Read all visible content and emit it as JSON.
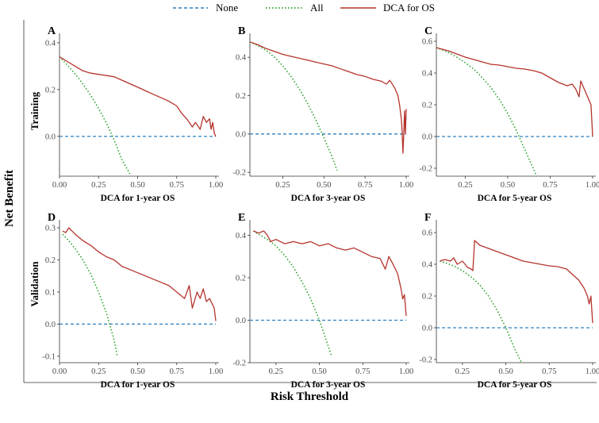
{
  "chart_data": {
    "type": "line",
    "legend": {
      "placement": "top-center",
      "entries": [
        {
          "name": "None",
          "color": "#2e7fbf",
          "style": "dashed"
        },
        {
          "name": "All",
          "color": "#2ca02c",
          "style": "dotted"
        },
        {
          "name": "DCA for OS",
          "color": "#b5332c",
          "style": "solid"
        }
      ]
    },
    "xlabel": "Risk Threshold",
    "ylabel": "Net Benefit",
    "row_labels": [
      "Training",
      "Validation"
    ],
    "panels": [
      {
        "letter": "A",
        "xlabel": "DCA for 1-year OS",
        "row": 0,
        "col": 0,
        "xlim": [
          0.0,
          1.0
        ],
        "ylim": [
          -0.17,
          0.42
        ],
        "xticks": [
          0,
          0.25,
          0.5,
          0.75,
          1.0
        ],
        "xtick_labels": [
          "0.00",
          "0.25",
          "0.50",
          "0.75",
          "1.00"
        ],
        "yticks": [
          0,
          0.2,
          0.4
        ],
        "ytick_labels": [
          "0.0",
          "0.2",
          "0.4"
        ],
        "series": {
          "None": {
            "x": [
              0.0,
              1.0
            ],
            "y": [
              0,
              0
            ]
          },
          "All": {
            "x": [
              0.0,
              0.05,
              0.1,
              0.15,
              0.2,
              0.25,
              0.3,
              0.35,
              0.4,
              0.45
            ],
            "y": [
              0.34,
              0.305,
              0.267,
              0.224,
              0.175,
              0.12,
              0.057,
              -0.015,
              -0.1,
              -0.16
            ]
          },
          "DCA for OS": {
            "x": [
              0.0,
              0.05,
              0.1,
              0.15,
              0.2,
              0.25,
              0.3,
              0.35,
              0.4,
              0.45,
              0.5,
              0.55,
              0.6,
              0.65,
              0.7,
              0.75,
              0.78,
              0.82,
              0.85,
              0.87,
              0.9,
              0.92,
              0.94,
              0.96,
              0.97,
              0.98,
              0.99,
              1.0
            ],
            "y": [
              0.34,
              0.32,
              0.3,
              0.28,
              0.27,
              0.265,
              0.26,
              0.255,
              0.24,
              0.225,
              0.21,
              0.195,
              0.18,
              0.165,
              0.15,
              0.13,
              0.1,
              0.07,
              0.04,
              0.06,
              0.03,
              0.085,
              0.06,
              0.075,
              0.03,
              0.06,
              0.015,
              0.0
            ]
          }
        }
      },
      {
        "letter": "B",
        "xlabel": "DCA for 3-year OS",
        "row": 0,
        "col": 1,
        "xlim": [
          0.05,
          1.0
        ],
        "ylim": [
          -0.22,
          0.5
        ],
        "xticks": [
          0.25,
          0.5,
          0.75,
          1.0
        ],
        "xtick_labels": [
          "0.25",
          "0.50",
          "0.75",
          "1.00"
        ],
        "yticks": [
          -0.2,
          0,
          0.2,
          0.4
        ],
        "ytick_labels": [
          "-0.2",
          "0.0",
          "0.2",
          "0.4"
        ],
        "series": {
          "None": {
            "x": [
              0.05,
              1.0
            ],
            "y": [
              0,
              0
            ]
          },
          "All": {
            "x": [
              0.05,
              0.1,
              0.15,
              0.2,
              0.25,
              0.3,
              0.35,
              0.4,
              0.45,
              0.5,
              0.55,
              0.58
            ],
            "y": [
              0.48,
              0.46,
              0.435,
              0.4,
              0.355,
              0.3,
              0.235,
              0.16,
              0.075,
              -0.02,
              -0.12,
              -0.19
            ]
          },
          "DCA for OS": {
            "x": [
              0.05,
              0.1,
              0.15,
              0.2,
              0.25,
              0.3,
              0.35,
              0.4,
              0.45,
              0.5,
              0.55,
              0.6,
              0.65,
              0.7,
              0.75,
              0.8,
              0.85,
              0.88,
              0.9,
              0.93,
              0.95,
              0.96,
              0.97,
              0.975,
              0.98,
              0.985,
              0.99,
              0.995,
              1.0
            ],
            "y": [
              0.48,
              0.465,
              0.445,
              0.43,
              0.415,
              0.405,
              0.395,
              0.385,
              0.375,
              0.365,
              0.355,
              0.34,
              0.325,
              0.31,
              0.3,
              0.285,
              0.275,
              0.26,
              0.28,
              0.24,
              0.2,
              0.15,
              0.08,
              0.02,
              -0.1,
              0.0,
              0.12,
              0.0,
              0.13
            ]
          }
        }
      },
      {
        "letter": "C",
        "xlabel": "DCA for 5-year OS",
        "row": 0,
        "col": 2,
        "xlim": [
          0.08,
          1.0
        ],
        "ylim": [
          -0.25,
          0.62
        ],
        "xticks": [
          0.25,
          0.5,
          0.75,
          1.0
        ],
        "xtick_labels": [
          "0.25",
          "0.50",
          "0.75",
          "1.00"
        ],
        "yticks": [
          -0.2,
          0,
          0.2,
          0.4,
          0.6
        ],
        "ytick_labels": [
          "-0.2",
          "0.0",
          "0.2",
          "0.4",
          "0.6"
        ],
        "series": {
          "None": {
            "x": [
              0.08,
              1.0
            ],
            "y": [
              0,
              0
            ]
          },
          "All": {
            "x": [
              0.08,
              0.15,
              0.2,
              0.25,
              0.3,
              0.35,
              0.4,
              0.45,
              0.5,
              0.55,
              0.6,
              0.65,
              0.67
            ],
            "y": [
              0.56,
              0.53,
              0.5,
              0.465,
              0.425,
              0.37,
              0.31,
              0.235,
              0.145,
              0.04,
              -0.08,
              -0.2,
              -0.25
            ]
          },
          "DCA for OS": {
            "x": [
              0.08,
              0.15,
              0.2,
              0.25,
              0.3,
              0.35,
              0.4,
              0.45,
              0.5,
              0.55,
              0.6,
              0.65,
              0.7,
              0.75,
              0.8,
              0.85,
              0.88,
              0.9,
              0.92,
              0.93,
              0.95,
              0.97,
              0.99,
              1.0
            ],
            "y": [
              0.56,
              0.54,
              0.52,
              0.5,
              0.485,
              0.47,
              0.455,
              0.45,
              0.44,
              0.43,
              0.425,
              0.415,
              0.4,
              0.37,
              0.34,
              0.32,
              0.33,
              0.3,
              0.25,
              0.35,
              0.3,
              0.25,
              0.2,
              0.0
            ]
          }
        }
      },
      {
        "letter": "D",
        "xlabel": "DCA for 1-year OS",
        "row": 1,
        "col": 0,
        "xlim": [
          0.0,
          1.0
        ],
        "ylim": [
          -0.12,
          0.31
        ],
        "xticks": [
          0,
          0.25,
          0.5,
          0.75,
          1.0
        ],
        "xtick_labels": [
          "0.00",
          "0.25",
          "0.50",
          "0.75",
          "1.00"
        ],
        "yticks": [
          -0.1,
          0,
          0.1,
          0.2,
          0.3
        ],
        "ytick_labels": [
          "-0.1",
          "0.0",
          "0.1",
          "0.2",
          "0.3"
        ],
        "series": {
          "None": {
            "x": [
              0.0,
              1.0
            ],
            "y": [
              0,
              0
            ]
          },
          "All": {
            "x": [
              0.02,
              0.05,
              0.1,
              0.15,
              0.2,
              0.25,
              0.3,
              0.35,
              0.37
            ],
            "y": [
              0.28,
              0.265,
              0.235,
              0.2,
              0.155,
              0.1,
              0.035,
              -0.05,
              -0.1
            ]
          },
          "DCA for OS": {
            "x": [
              0.02,
              0.04,
              0.06,
              0.08,
              0.1,
              0.15,
              0.2,
              0.25,
              0.3,
              0.35,
              0.4,
              0.45,
              0.5,
              0.55,
              0.6,
              0.65,
              0.7,
              0.75,
              0.8,
              0.83,
              0.85,
              0.88,
              0.9,
              0.92,
              0.94,
              0.96,
              0.98,
              0.99,
              1.0
            ],
            "y": [
              0.29,
              0.285,
              0.3,
              0.29,
              0.28,
              0.26,
              0.245,
              0.225,
              0.21,
              0.2,
              0.18,
              0.17,
              0.16,
              0.15,
              0.14,
              0.13,
              0.12,
              0.1,
              0.08,
              0.12,
              0.05,
              0.1,
              0.08,
              0.11,
              0.07,
              0.08,
              0.06,
              0.05,
              0.01
            ]
          }
        }
      },
      {
        "letter": "E",
        "xlabel": "DCA for 3-year OS",
        "row": 1,
        "col": 1,
        "xlim": [
          0.1,
          1.0
        ],
        "ylim": [
          -0.2,
          0.45
        ],
        "xticks": [
          0.25,
          0.5,
          0.75,
          1.0
        ],
        "xtick_labels": [
          "0.25",
          "0.50",
          "0.75",
          "1.00"
        ],
        "yticks": [
          -0.2,
          0,
          0.2,
          0.4
        ],
        "ytick_labels": [
          "-0.2",
          "0.0",
          "0.2",
          "0.4"
        ],
        "series": {
          "None": {
            "x": [
              0.1,
              1.0
            ],
            "y": [
              0,
              0
            ]
          },
          "All": {
            "x": [
              0.12,
              0.15,
              0.2,
              0.25,
              0.3,
              0.35,
              0.4,
              0.45,
              0.5,
              0.55,
              0.57
            ],
            "y": [
              0.42,
              0.405,
              0.38,
              0.35,
              0.305,
              0.25,
              0.18,
              0.1,
              0.0,
              -0.12,
              -0.17
            ]
          },
          "DCA for OS": {
            "x": [
              0.12,
              0.15,
              0.18,
              0.2,
              0.22,
              0.25,
              0.3,
              0.35,
              0.4,
              0.45,
              0.5,
              0.55,
              0.6,
              0.65,
              0.7,
              0.75,
              0.8,
              0.85,
              0.88,
              0.9,
              0.92,
              0.95,
              0.97,
              0.98,
              0.99,
              1.0
            ],
            "y": [
              0.42,
              0.41,
              0.42,
              0.4,
              0.37,
              0.38,
              0.36,
              0.37,
              0.36,
              0.37,
              0.35,
              0.36,
              0.34,
              0.33,
              0.34,
              0.32,
              0.3,
              0.29,
              0.24,
              0.3,
              0.27,
              0.22,
              0.15,
              0.1,
              0.12,
              0.02
            ]
          }
        }
      },
      {
        "letter": "F",
        "xlabel": "DCA for 5-year OS",
        "row": 1,
        "col": 2,
        "xlim": [
          0.1,
          1.0
        ],
        "ylim": [
          -0.22,
          0.65
        ],
        "xticks": [
          0.25,
          0.5,
          0.75,
          1.0
        ],
        "xtick_labels": [
          "0.25",
          "0.50",
          "0.75",
          "1.00"
        ],
        "yticks": [
          -0.2,
          0,
          0.2,
          0.4,
          0.6
        ],
        "ytick_labels": [
          "-0.2",
          "0.0",
          "0.2",
          "0.4",
          "0.6"
        ],
        "series": {
          "None": {
            "x": [
              0.1,
              1.0
            ],
            "y": [
              0,
              0
            ]
          },
          "All": {
            "x": [
              0.12,
              0.15,
              0.2,
              0.25,
              0.3,
              0.35,
              0.4,
              0.45,
              0.5,
              0.55,
              0.59
            ],
            "y": [
              0.42,
              0.41,
              0.39,
              0.36,
              0.32,
              0.27,
              0.2,
              0.11,
              0.0,
              -0.13,
              -0.22
            ]
          },
          "DCA for OS": {
            "x": [
              0.12,
              0.15,
              0.18,
              0.2,
              0.22,
              0.25,
              0.28,
              0.3,
              0.31,
              0.32,
              0.35,
              0.4,
              0.45,
              0.5,
              0.55,
              0.6,
              0.65,
              0.7,
              0.75,
              0.8,
              0.85,
              0.88,
              0.9,
              0.92,
              0.95,
              0.97,
              0.98,
              0.99,
              1.0
            ],
            "y": [
              0.42,
              0.43,
              0.42,
              0.44,
              0.4,
              0.42,
              0.38,
              0.37,
              0.36,
              0.55,
              0.52,
              0.5,
              0.48,
              0.46,
              0.44,
              0.42,
              0.41,
              0.4,
              0.39,
              0.385,
              0.37,
              0.34,
              0.32,
              0.3,
              0.25,
              0.2,
              0.15,
              0.2,
              0.03
            ]
          }
        }
      }
    ]
  }
}
